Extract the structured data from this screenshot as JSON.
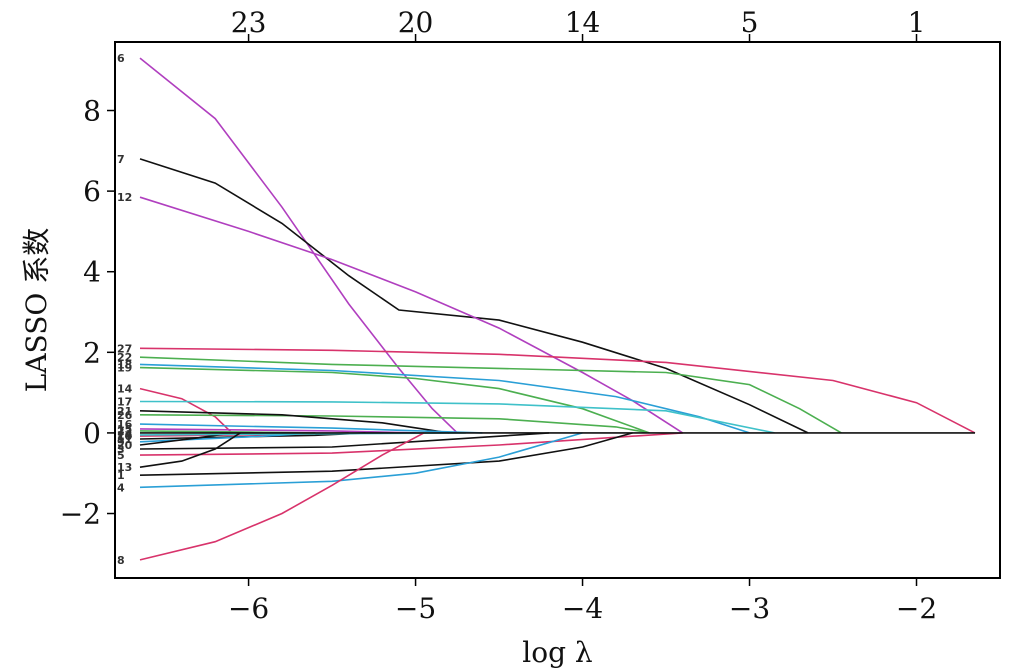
{
  "chart_data": {
    "type": "line",
    "title": "",
    "xlabel": "log λ",
    "ylabel": "LASSO 系数",
    "xlim": [
      -6.8,
      -1.5
    ],
    "ylim": [
      -3.6,
      9.7
    ],
    "x_ticks": [
      -6,
      -5,
      -4,
      -3,
      -2
    ],
    "x_tick_labels": [
      "−6",
      "−5",
      "−4",
      "−3",
      "−2"
    ],
    "y_ticks": [
      -2,
      0,
      2,
      4,
      6,
      8
    ],
    "y_tick_labels": [
      "−2",
      "0",
      "2",
      "4",
      "6",
      "8"
    ],
    "top_ticks": [
      -6,
      -5,
      -4,
      -3,
      -2
    ],
    "top_tick_labels": [
      "23",
      "20",
      "14",
      "5",
      "1"
    ],
    "grid": false,
    "series": [
      {
        "name": "6",
        "color": "#b03fbf",
        "x": [
          -6.65,
          -6.2,
          -5.8,
          -5.4,
          -5.1,
          -4.9,
          -4.75
        ],
        "y": [
          9.3,
          7.8,
          5.6,
          3.2,
          1.6,
          0.6,
          0
        ]
      },
      {
        "name": "7",
        "color": "#111111",
        "x": [
          -6.65,
          -6.2,
          -5.8,
          -5.4,
          -5.1,
          -4.5,
          -4.0,
          -3.5,
          -3.0,
          -2.65
        ],
        "y": [
          6.8,
          6.2,
          5.2,
          3.9,
          3.05,
          2.8,
          2.25,
          1.6,
          0.7,
          0
        ]
      },
      {
        "name": "12",
        "color": "#b03fbf",
        "x": [
          -6.65,
          -6.0,
          -5.5,
          -5.0,
          -4.5,
          -4.0,
          -3.7,
          -3.4
        ],
        "y": [
          5.85,
          5.0,
          4.3,
          3.5,
          2.6,
          1.5,
          0.8,
          0
        ]
      },
      {
        "name": "27",
        "color": "#d8336b",
        "x": [
          -6.65,
          -5.5,
          -4.5,
          -3.5,
          -2.5,
          -2.0,
          -1.65
        ],
        "y": [
          2.1,
          2.05,
          1.95,
          1.75,
          1.3,
          0.75,
          0
        ]
      },
      {
        "name": "22",
        "color": "#4caf50",
        "x": [
          -6.65,
          -5.5,
          -4.5,
          -3.5,
          -3.0,
          -2.7,
          -2.45
        ],
        "y": [
          1.88,
          1.7,
          1.6,
          1.5,
          1.2,
          0.6,
          0
        ]
      },
      {
        "name": "18",
        "color": "#2a9fd6",
        "x": [
          -6.65,
          -5.5,
          -4.5,
          -3.8,
          -3.3,
          -3.0
        ],
        "y": [
          1.7,
          1.55,
          1.3,
          0.9,
          0.4,
          0
        ]
      },
      {
        "name": "19",
        "color": "#4caf50",
        "x": [
          -6.65,
          -5.5,
          -5.0,
          -4.5,
          -4.0,
          -3.6
        ],
        "y": [
          1.62,
          1.5,
          1.35,
          1.1,
          0.6,
          0
        ]
      },
      {
        "name": "14",
        "color": "#d8336b",
        "x": [
          -6.65,
          -6.4,
          -6.2,
          -6.1
        ],
        "y": [
          1.1,
          0.85,
          0.4,
          0
        ]
      },
      {
        "name": "17",
        "color": "#3fc1c9",
        "x": [
          -6.65,
          -5.5,
          -4.5,
          -3.5,
          -2.85
        ],
        "y": [
          0.78,
          0.77,
          0.72,
          0.55,
          0
        ]
      },
      {
        "name": "26",
        "color": "#4caf50",
        "x": [
          -6.65,
          -5.5,
          -4.5,
          -3.8,
          -3.6
        ],
        "y": [
          0.45,
          0.42,
          0.35,
          0.15,
          0
        ]
      },
      {
        "name": "21",
        "color": "#111111",
        "x": [
          -6.65,
          -5.8,
          -5.2,
          -4.8
        ],
        "y": [
          0.55,
          0.45,
          0.25,
          0
        ]
      },
      {
        "name": "16",
        "color": "#2a9fd6",
        "x": [
          -6.65,
          -5.5,
          -4.6
        ],
        "y": [
          0.22,
          0.12,
          0
        ]
      },
      {
        "name": "15",
        "color": "#b03fbf",
        "x": [
          -6.65,
          -5.5,
          -5.0
        ],
        "y": [
          0.1,
          0.05,
          0
        ]
      },
      {
        "name": "10",
        "color": "#d8336b",
        "x": [
          -6.65,
          -5.8,
          -5.4
        ],
        "y": [
          -0.08,
          -0.04,
          0
        ]
      },
      {
        "name": "11",
        "color": "#111111",
        "x": [
          -6.65,
          -5.6,
          -5.3
        ],
        "y": [
          -0.15,
          -0.06,
          0
        ]
      },
      {
        "name": "9",
        "color": "#2a9fd6",
        "x": [
          -6.65,
          -5.9,
          -5.6
        ],
        "y": [
          -0.22,
          -0.08,
          0
        ]
      },
      {
        "name": "20",
        "color": "#111111",
        "x": [
          -6.65,
          -6.3,
          -6.1
        ],
        "y": [
          -0.3,
          -0.12,
          0
        ]
      },
      {
        "name": "24",
        "color": "#3fc1c9",
        "x": [
          -6.65,
          -5.5,
          -4.7
        ],
        "y": [
          -0.05,
          -0.02,
          0
        ]
      },
      {
        "name": "23",
        "color": "#4caf50",
        "x": [
          -6.65,
          -6.0,
          -5.6
        ],
        "y": [
          0.05,
          0.02,
          0
        ]
      },
      {
        "name": "3",
        "color": "#111111",
        "x": [
          -6.65,
          -5.5,
          -4.2
        ],
        "y": [
          -0.4,
          -0.35,
          0
        ]
      },
      {
        "name": "5",
        "color": "#d8336b",
        "x": [
          -6.65,
          -5.5,
          -4.5,
          -3.4
        ],
        "y": [
          -0.55,
          -0.5,
          -0.3,
          0
        ]
      },
      {
        "name": "13",
        "color": "#111111",
        "x": [
          -6.65,
          -6.4,
          -6.2,
          -6.05
        ],
        "y": [
          -0.85,
          -0.7,
          -0.4,
          0
        ]
      },
      {
        "name": "1",
        "color": "#111111",
        "x": [
          -6.65,
          -5.5,
          -4.5,
          -4.0,
          -3.7
        ],
        "y": [
          -1.05,
          -0.95,
          -0.7,
          -0.35,
          0
        ]
      },
      {
        "name": "4",
        "color": "#2a9fd6",
        "x": [
          -6.65,
          -5.5,
          -5.0,
          -4.5,
          -4.0
        ],
        "y": [
          -1.35,
          -1.2,
          -1.0,
          -0.6,
          0
        ]
      },
      {
        "name": "8",
        "color": "#d8336b",
        "x": [
          -6.65,
          -6.2,
          -5.8,
          -5.5,
          -5.2,
          -4.95
        ],
        "y": [
          -3.15,
          -2.7,
          -2.0,
          -1.3,
          -0.55,
          0
        ]
      },
      {
        "name": "zero",
        "color": "#111111",
        "x": [
          -6.65,
          -1.65
        ],
        "y": [
          0,
          0
        ]
      }
    ],
    "label_order_left": [
      "6",
      "7",
      "12",
      "27",
      "22",
      "18",
      "19",
      "14",
      "17",
      "26",
      "21",
      "16",
      "15",
      "10",
      "11",
      "9",
      "20",
      "24",
      "23",
      "3",
      "5",
      "13",
      "1",
      "4",
      "8"
    ]
  }
}
